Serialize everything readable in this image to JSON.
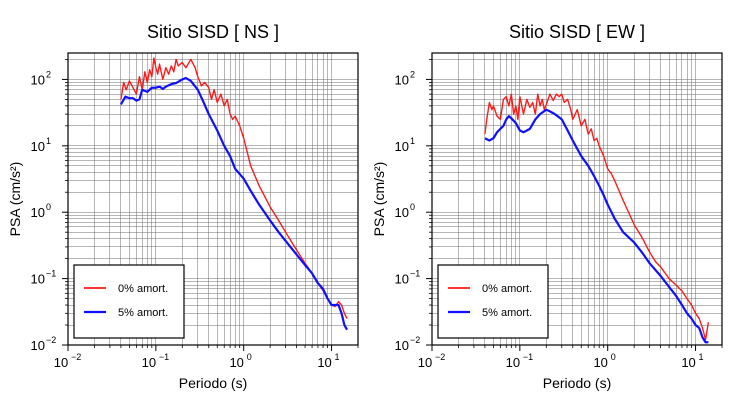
{
  "legend_labels": [
    "0% amort.",
    "5% amort."
  ],
  "colors": {
    "series_0": "#ff1a1a",
    "series_1": "#1010ff",
    "axis": "#000000",
    "grid": "#6e6e6e"
  },
  "chart_data": [
    {
      "type": "line",
      "title": "Sitio SISD [ NS ]",
      "xlabel": "Periodo (s)",
      "ylabel": "PSA (cm/s²)",
      "x_scale": "log",
      "y_scale": "log",
      "xlim": [
        0.01,
        20
      ],
      "ylim": [
        0.01,
        250
      ],
      "x_ticks": [
        {
          "base": "10",
          "exp": "−2"
        },
        {
          "base": "10",
          "exp": "−1"
        },
        {
          "base": "10",
          "exp": "0"
        },
        {
          "base": "10",
          "exp": "1"
        }
      ],
      "y_ticks": [
        {
          "base": "10",
          "exp": "−2"
        },
        {
          "base": "10",
          "exp": "−1"
        },
        {
          "base": "10",
          "exp": "0"
        },
        {
          "base": "10",
          "exp": "1"
        },
        {
          "base": "10",
          "exp": "2"
        }
      ],
      "grid": true,
      "legend_position": "bottom-left",
      "series": [
        {
          "name": "0% amort.",
          "x": [
            0.04,
            0.043,
            0.046,
            0.05,
            0.055,
            0.06,
            0.065,
            0.07,
            0.075,
            0.08,
            0.085,
            0.09,
            0.095,
            0.1,
            0.105,
            0.11,
            0.12,
            0.13,
            0.14,
            0.15,
            0.16,
            0.17,
            0.18,
            0.2,
            0.22,
            0.25,
            0.28,
            0.3,
            0.33,
            0.36,
            0.4,
            0.43,
            0.46,
            0.5,
            0.55,
            0.6,
            0.65,
            0.7,
            0.75,
            0.8,
            0.9,
            1.0,
            1.2,
            1.5,
            2.0,
            2.5,
            3.0,
            4.0,
            5.0,
            6.0,
            7.0,
            8.0,
            9.0,
            10.0,
            11.0,
            12.0,
            13.0,
            14.0,
            15.0
          ],
          "y": [
            50,
            90,
            70,
            95,
            75,
            60,
            110,
            70,
            130,
            90,
            140,
            110,
            210,
            150,
            120,
            170,
            100,
            150,
            120,
            160,
            130,
            200,
            160,
            180,
            150,
            200,
            150,
            110,
            80,
            90,
            75,
            50,
            70,
            45,
            60,
            40,
            50,
            30,
            25,
            28,
            20,
            13,
            5,
            2.5,
            1.2,
            0.75,
            0.5,
            0.27,
            0.17,
            0.12,
            0.085,
            0.066,
            0.05,
            0.04,
            0.038,
            0.045,
            0.04,
            0.03,
            0.025
          ]
        },
        {
          "name": "5% amort.",
          "x": [
            0.04,
            0.045,
            0.05,
            0.055,
            0.06,
            0.065,
            0.07,
            0.08,
            0.09,
            0.1,
            0.11,
            0.12,
            0.13,
            0.15,
            0.17,
            0.2,
            0.22,
            0.25,
            0.3,
            0.35,
            0.4,
            0.5,
            0.6,
            0.7,
            0.8,
            1.0,
            1.2,
            1.5,
            2.0,
            2.5,
            3.0,
            4.0,
            5.0,
            6.0,
            7.0,
            8.0,
            9.0,
            10.0,
            11.0,
            12.0,
            13.0,
            14.0,
            15.0
          ],
          "y": [
            42,
            55,
            52,
            52,
            48,
            50,
            70,
            65,
            75,
            75,
            78,
            72,
            78,
            85,
            88,
            100,
            105,
            95,
            70,
            45,
            30,
            17,
            10,
            7,
            4.5,
            3.2,
            2.1,
            1.3,
            0.75,
            0.5,
            0.37,
            0.23,
            0.16,
            0.12,
            0.085,
            0.07,
            0.05,
            0.04,
            0.04,
            0.04,
            0.03,
            0.02,
            0.017
          ]
        }
      ]
    },
    {
      "type": "line",
      "title": "Sitio SISD [ EW ]",
      "xlabel": "Periodo (s)",
      "ylabel": "PSA (cm/s²)",
      "x_scale": "log",
      "y_scale": "log",
      "xlim": [
        0.01,
        20
      ],
      "ylim": [
        0.01,
        250
      ],
      "x_ticks": [
        {
          "base": "10",
          "exp": "−2"
        },
        {
          "base": "10",
          "exp": "−1"
        },
        {
          "base": "10",
          "exp": "0"
        },
        {
          "base": "10",
          "exp": "1"
        }
      ],
      "y_ticks": [
        {
          "base": "10",
          "exp": "−2"
        },
        {
          "base": "10",
          "exp": "−1"
        },
        {
          "base": "10",
          "exp": "0"
        },
        {
          "base": "10",
          "exp": "1"
        },
        {
          "base": "10",
          "exp": "2"
        }
      ],
      "grid": true,
      "legend_position": "bottom-left",
      "series": [
        {
          "name": "0% amort.",
          "x": [
            0.04,
            0.042,
            0.045,
            0.048,
            0.05,
            0.055,
            0.06,
            0.065,
            0.07,
            0.075,
            0.08,
            0.085,
            0.09,
            0.095,
            0.1,
            0.11,
            0.12,
            0.13,
            0.14,
            0.15,
            0.16,
            0.17,
            0.18,
            0.19,
            0.2,
            0.22,
            0.24,
            0.26,
            0.28,
            0.3,
            0.32,
            0.35,
            0.38,
            0.4,
            0.45,
            0.5,
            0.55,
            0.6,
            0.65,
            0.7,
            0.75,
            0.8,
            0.9,
            1.0,
            1.1,
            1.2,
            1.5,
            2.0,
            2.5,
            3.0,
            3.5,
            4.0,
            5.0,
            6.0,
            7.0,
            8.0,
            9.0,
            10.0,
            11.0,
            12.0,
            13.0,
            14.0
          ],
          "y": [
            15,
            25,
            45,
            35,
            40,
            28,
            25,
            50,
            55,
            40,
            60,
            30,
            40,
            25,
            55,
            30,
            50,
            38,
            45,
            30,
            60,
            40,
            50,
            35,
            42,
            60,
            48,
            60,
            55,
            60,
            45,
            50,
            35,
            25,
            35,
            20,
            25,
            15,
            18,
            12,
            13,
            10,
            7,
            4.5,
            3.8,
            3.0,
            1.5,
            0.65,
            0.4,
            0.25,
            0.18,
            0.15,
            0.1,
            0.08,
            0.065,
            0.05,
            0.04,
            0.03,
            0.025,
            0.018,
            0.012,
            0.022
          ]
        },
        {
          "name": "5% amort.",
          "x": [
            0.04,
            0.045,
            0.05,
            0.055,
            0.06,
            0.065,
            0.07,
            0.075,
            0.08,
            0.09,
            0.1,
            0.11,
            0.12,
            0.13,
            0.15,
            0.17,
            0.2,
            0.22,
            0.25,
            0.3,
            0.35,
            0.4,
            0.5,
            0.6,
            0.7,
            0.8,
            0.9,
            1.0,
            1.2,
            1.5,
            2.0,
            2.5,
            3.0,
            4.0,
            5.0,
            6.0,
            7.0,
            8.0,
            9.0,
            10.0,
            11.0,
            12.0,
            13.0,
            14.0
          ],
          "y": [
            13,
            12,
            13,
            16,
            18,
            20,
            25,
            28,
            26,
            22,
            17,
            16,
            17,
            18,
            25,
            30,
            35,
            33,
            30,
            25,
            17,
            12,
            7,
            5,
            3.5,
            2.5,
            1.8,
            1.3,
            0.8,
            0.5,
            0.35,
            0.24,
            0.17,
            0.11,
            0.075,
            0.055,
            0.04,
            0.03,
            0.025,
            0.02,
            0.018,
            0.013,
            0.011,
            0.011
          ]
        }
      ]
    }
  ]
}
